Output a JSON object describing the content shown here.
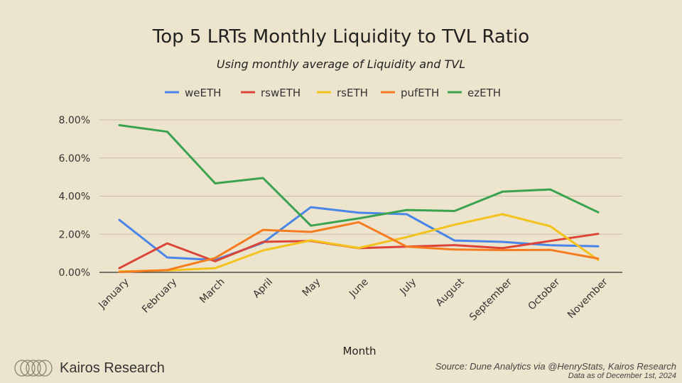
{
  "chart_data": {
    "type": "line",
    "title": "Top 5 LRTs Monthly Liquidity to TVL Ratio",
    "subtitle": "Using monthly average of Liquidity and TVL",
    "xlabel": "Month",
    "ylabel": "",
    "categories": [
      "January",
      "February",
      "March",
      "April",
      "May",
      "June",
      "July",
      "August",
      "September",
      "October",
      "November"
    ],
    "ylim": [
      0,
      8
    ],
    "yticks": [
      "0.00%",
      "2.00%",
      "4.00%",
      "6.00%",
      "8.00%"
    ],
    "ytick_values": [
      0,
      2,
      4,
      6,
      8
    ],
    "grid": true,
    "legend_position": "top-center",
    "series": [
      {
        "name": "weETH",
        "color": "#4a86e8",
        "values": [
          2.75,
          0.78,
          0.65,
          1.55,
          3.42,
          3.13,
          3.05,
          1.67,
          1.6,
          1.42,
          1.37
        ]
      },
      {
        "name": "rswETH",
        "color": "#db4437",
        "values": [
          0.22,
          1.52,
          0.58,
          1.6,
          1.65,
          1.27,
          1.35,
          1.43,
          1.27,
          1.65,
          2.02
        ]
      },
      {
        "name": "rsETH",
        "color": "#f4c21c",
        "values": [
          0.05,
          0.1,
          0.22,
          1.15,
          1.68,
          1.28,
          1.85,
          2.5,
          3.05,
          2.42,
          0.65
        ]
      },
      {
        "name": "pufETH",
        "color": "#f57c1f",
        "values": [
          0.02,
          0.12,
          0.75,
          2.23,
          2.12,
          2.63,
          1.35,
          1.2,
          1.17,
          1.18,
          0.72
        ]
      },
      {
        "name": "ezETH",
        "color": "#3aa34f",
        "values": [
          7.72,
          7.38,
          4.67,
          4.95,
          2.45,
          2.83,
          3.27,
          3.22,
          4.23,
          4.35,
          3.15
        ]
      }
    ]
  },
  "brand": {
    "name": "Kairos Research"
  },
  "source": {
    "line1": "Source: Dune Analytics via @HenryStats, Kairos Research",
    "line2": "Data as of December 1st, 2024"
  }
}
